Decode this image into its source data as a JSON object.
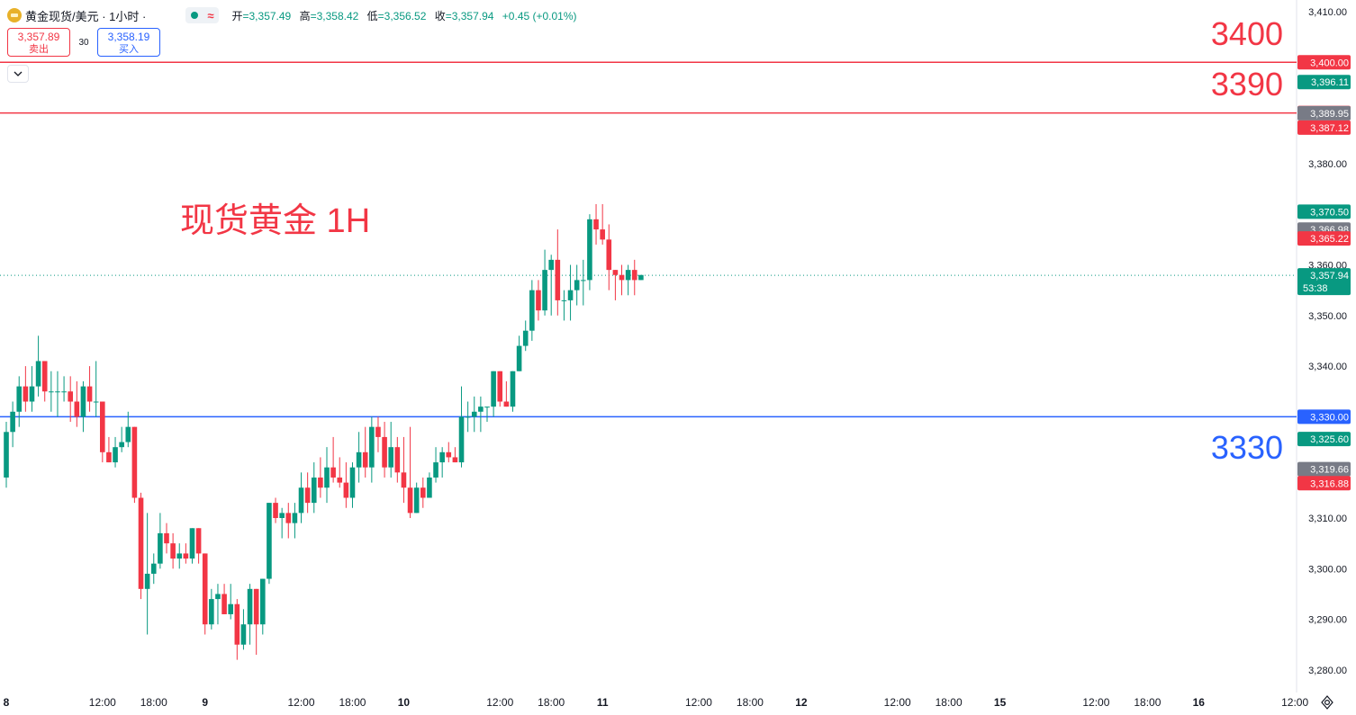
{
  "header": {
    "symbol_title": "黄金现货/美元 · 1小时 ·",
    "market_status_icon": "market-open-dot-icon",
    "wave_icon": "≈",
    "open_label": "开",
    "open_value": "=3,357.49",
    "high_label": "高",
    "high_value": "=3,358.42",
    "low_label": "低",
    "low_value": "=3,356.52",
    "close_label": "收",
    "close_value": "=3,357.94",
    "change_value": "+0.45 (+0.01%)"
  },
  "trade_panel": {
    "sell_price": "3,357.89",
    "sell_label": "卖出",
    "spread": "30",
    "buy_price": "3,358.19",
    "buy_label": "买入"
  },
  "collapse_icon": "chevron-down-icon",
  "settings_icon": "gear-icon",
  "annotations": {
    "title_text": "现货黄金 1H",
    "level_3400": "3400",
    "level_3390": "3390",
    "level_3330": "3330"
  },
  "colors": {
    "up": "#089981",
    "down": "#f23645",
    "red_line": "#f23645",
    "blue_line": "#2962ff",
    "gray_label": "#787b86"
  },
  "chart_data": {
    "type": "candlestick",
    "interval": "1h",
    "ylim": [
      3278,
      3412
    ],
    "y_ticks": [
      3410,
      3380,
      3360,
      3350,
      3340,
      3310,
      3300,
      3290,
      3280
    ],
    "y_tick_labels": [
      "3,410.00",
      "3,380.00",
      "3,360.00",
      "3,350.00",
      "3,340.00",
      "3,310.00",
      "3,300.00",
      "3,290.00",
      "3,280.00"
    ],
    "x_labels": [
      {
        "slot": 0,
        "label": "8"
      },
      {
        "slot": 15,
        "label": "12:00"
      },
      {
        "slot": 23,
        "label": "18:00"
      },
      {
        "slot": 31,
        "label": "9"
      },
      {
        "slot": 46,
        "label": "12:00"
      },
      {
        "slot": 54,
        "label": "18:00"
      },
      {
        "slot": 62,
        "label": "10"
      },
      {
        "slot": 77,
        "label": "12:00"
      },
      {
        "slot": 85,
        "label": "18:00"
      },
      {
        "slot": 93,
        "label": "11"
      },
      {
        "slot": 108,
        "label": "12:00"
      },
      {
        "slot": 116,
        "label": "18:00"
      },
      {
        "slot": 124,
        "label": "12"
      },
      {
        "slot": 139,
        "label": "12:00"
      },
      {
        "slot": 147,
        "label": "18:00"
      },
      {
        "slot": 155,
        "label": "15"
      },
      {
        "slot": 170,
        "label": "12:00"
      },
      {
        "slot": 178,
        "label": "18:00"
      },
      {
        "slot": 186,
        "label": "16"
      },
      {
        "slot": 201,
        "label": "12:00"
      }
    ],
    "horizontal_lines": [
      {
        "price": 3400,
        "color": "red",
        "label": "3,400.00"
      },
      {
        "price": 3390,
        "color": "red",
        "label": "3,390.00"
      },
      {
        "price": 3330,
        "color": "blue",
        "label": "3,330.00"
      }
    ],
    "current_price": {
      "price": 3357.94,
      "label": "3,357.94",
      "countdown": "53:38"
    },
    "price_tags": [
      {
        "price": 3396.11,
        "label": "3,396.11",
        "color": "up"
      },
      {
        "price": 3389.95,
        "label": "3,389.95",
        "color": "gray"
      },
      {
        "price": 3387.12,
        "label": "3,387.12",
        "color": "down"
      },
      {
        "price": 3370.5,
        "label": "3,370.50",
        "color": "up"
      },
      {
        "price": 3366.98,
        "label": "3,366.98",
        "color": "gray"
      },
      {
        "price": 3365.22,
        "label": "3,365.22",
        "color": "down"
      },
      {
        "price": 3325.6,
        "label": "3,325.60",
        "color": "up"
      },
      {
        "price": 3319.66,
        "label": "3,319.66",
        "color": "gray"
      },
      {
        "price": 3316.88,
        "label": "3,316.88",
        "color": "down"
      }
    ],
    "candles": [
      [
        3318,
        3329,
        3316,
        3327
      ],
      [
        3327,
        3333,
        3324,
        3331
      ],
      [
        3331,
        3338,
        3328,
        3336
      ],
      [
        3336,
        3340,
        3331,
        3333
      ],
      [
        3333,
        3340,
        3331,
        3336
      ],
      [
        3336,
        3346,
        3334,
        3341
      ],
      [
        3341,
        3341,
        3333,
        3335
      ],
      [
        3335,
        3339,
        3331,
        3335
      ],
      [
        3335,
        3339,
        3330,
        3335
      ],
      [
        3335,
        3338,
        3333,
        3335
      ],
      [
        3335,
        3338,
        3329,
        3333
      ],
      [
        3333,
        3337,
        3328,
        3330
      ],
      [
        3330,
        3337,
        3327,
        3336
      ],
      [
        3336,
        3340,
        3331,
        3333
      ],
      [
        3333,
        3341,
        3330,
        3333
      ],
      [
        3333,
        3333,
        3321,
        3323
      ],
      [
        3323,
        3326,
        3321,
        3321
      ],
      [
        3321,
        3326,
        3320,
        3324
      ],
      [
        3324,
        3328,
        3323,
        3325
      ],
      [
        3325,
        3331,
        3324,
        3328
      ],
      [
        3328,
        3328,
        3313,
        3314
      ],
      [
        3314,
        3315,
        3294,
        3296
      ],
      [
        3296,
        3311,
        3287,
        3299
      ],
      [
        3299,
        3303,
        3297,
        3301
      ],
      [
        3301,
        3311,
        3300,
        3307
      ],
      [
        3307,
        3309,
        3303,
        3305
      ],
      [
        3305,
        3307,
        3300,
        3302
      ],
      [
        3302,
        3305,
        3300,
        3303
      ],
      [
        3303,
        3305,
        3301,
        3302
      ],
      [
        3302,
        3308,
        3301,
        3308
      ],
      [
        3308,
        3308,
        3301,
        3303
      ],
      [
        3303,
        3303,
        3287,
        3289
      ],
      [
        3289,
        3296,
        3288,
        3294
      ],
      [
        3294,
        3297,
        3289,
        3295
      ],
      [
        3295,
        3297,
        3291,
        3291
      ],
      [
        3291,
        3297,
        3290,
        3293
      ],
      [
        3293,
        3294,
        3282,
        3285
      ],
      [
        3285,
        3292,
        3284,
        3289
      ],
      [
        3289,
        3297,
        3285,
        3296
      ],
      [
        3296,
        3296,
        3283,
        3289
      ],
      [
        3289,
        3298,
        3287,
        3298
      ],
      [
        3298,
        3313,
        3297,
        3313
      ],
      [
        3313,
        3314,
        3309,
        3310
      ],
      [
        3310,
        3312,
        3306,
        3311
      ],
      [
        3311,
        3313,
        3306,
        3309
      ],
      [
        3309,
        3313,
        3306,
        3311
      ],
      [
        3311,
        3319,
        3309,
        3316
      ],
      [
        3316,
        3319,
        3311,
        3313
      ],
      [
        3313,
        3321,
        3311,
        3318
      ],
      [
        3318,
        3322,
        3314,
        3316
      ],
      [
        3316,
        3324,
        3313,
        3320
      ],
      [
        3320,
        3326,
        3317,
        3318
      ],
      [
        3318,
        3322,
        3316,
        3317
      ],
      [
        3317,
        3321,
        3312,
        3314
      ],
      [
        3314,
        3321,
        3312,
        3320
      ],
      [
        3320,
        3327,
        3317,
        3323
      ],
      [
        3323,
        3328,
        3318,
        3320
      ],
      [
        3320,
        3330,
        3317,
        3328
      ],
      [
        3328,
        3330,
        3323,
        3326
      ],
      [
        3326,
        3329,
        3318,
        3320
      ],
      [
        3320,
        3329,
        3318,
        3324
      ],
      [
        3324,
        3326,
        3317,
        3319
      ],
      [
        3319,
        3326,
        3313,
        3316
      ],
      [
        3316,
        3328,
        3310,
        3311
      ],
      [
        3311,
        3317,
        3311,
        3316
      ],
      [
        3316,
        3318,
        3312,
        3314
      ],
      [
        3314,
        3319,
        3314,
        3318
      ],
      [
        3318,
        3324,
        3317,
        3321
      ],
      [
        3321,
        3324,
        3318,
        3323
      ],
      [
        3323,
        3325,
        3321,
        3322
      ],
      [
        3322,
        3324,
        3321,
        3321
      ],
      [
        3321,
        3336,
        3320,
        3330
      ],
      [
        3330,
        3333,
        3327,
        3330
      ],
      [
        3330,
        3334,
        3327,
        3331
      ],
      [
        3331,
        3334,
        3327,
        3332
      ],
      [
        3332,
        3332,
        3329,
        3332
      ],
      [
        3332,
        3339,
        3330,
        3339
      ],
      [
        3339,
        3339,
        3332,
        3333
      ],
      [
        3333,
        3337,
        3332,
        3332
      ],
      [
        3332,
        3339,
        3331,
        3339
      ],
      [
        3339,
        3346,
        3339,
        3344
      ],
      [
        3344,
        3349,
        3343,
        3347
      ],
      [
        3347,
        3357,
        3345,
        3355
      ],
      [
        3355,
        3357,
        3349,
        3351
      ],
      [
        3351,
        3363,
        3350,
        3359
      ],
      [
        3359,
        3362,
        3350,
        3361
      ],
      [
        3361,
        3367,
        3350,
        3353
      ],
      [
        3353,
        3355,
        3349,
        3353
      ],
      [
        3353,
        3360,
        3349,
        3355
      ],
      [
        3355,
        3360,
        3352,
        3357
      ],
      [
        3357,
        3361,
        3352,
        3357
      ],
      [
        3357,
        3370,
        3355,
        3369
      ],
      [
        3369,
        3372,
        3364,
        3367
      ],
      [
        3367,
        3372,
        3364,
        3365
      ],
      [
        3365,
        3368,
        3355,
        3359
      ],
      [
        3359,
        3359,
        3353,
        3358
      ],
      [
        3358,
        3360,
        3354,
        3357
      ],
      [
        3357,
        3360,
        3354,
        3359
      ],
      [
        3359,
        3361,
        3354,
        3357
      ],
      [
        3357,
        3358,
        3357,
        3358
      ]
    ]
  }
}
